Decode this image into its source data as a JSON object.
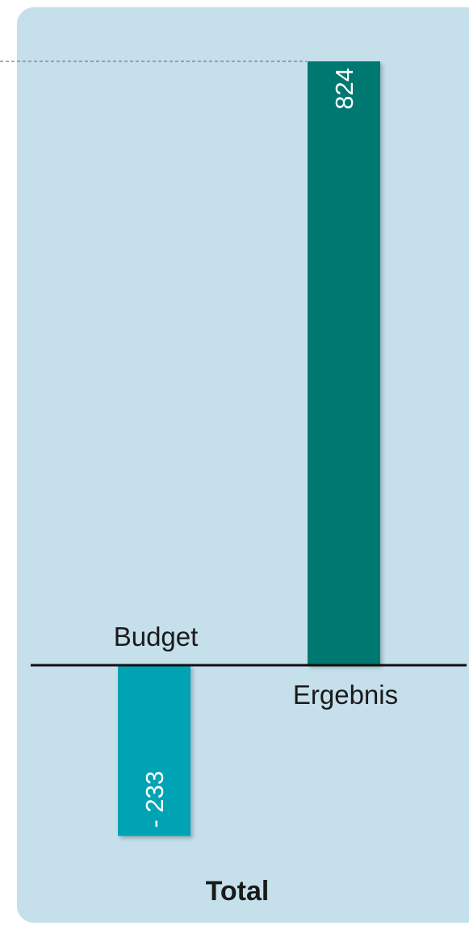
{
  "chart_data": {
    "type": "bar",
    "title": "Total",
    "categories": [
      "Budget",
      "Ergebnis"
    ],
    "values": [
      -233,
      824
    ],
    "value_labels": [
      "- 233",
      "824"
    ],
    "colors": [
      "#00a3b4",
      "#007872"
    ],
    "xlabel": "",
    "ylabel": "",
    "ylim": [
      -233,
      824
    ],
    "grid": false,
    "legend": "none"
  }
}
